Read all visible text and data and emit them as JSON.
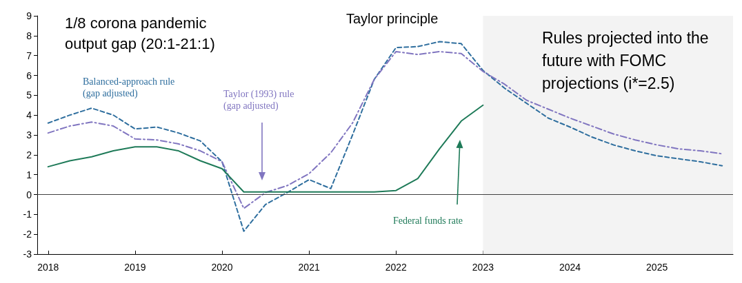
{
  "chart_data": {
    "type": "line",
    "x": [
      2018,
      2018.25,
      2018.5,
      2018.75,
      2019,
      2019.25,
      2019.5,
      2019.75,
      2020,
      2020.25,
      2020.5,
      2020.75,
      2021,
      2021.25,
      2021.5,
      2021.75,
      2022,
      2022.25,
      2022.5,
      2022.75,
      2023,
      2023.25,
      2023.5,
      2023.75,
      2024,
      2024.25,
      2024.5,
      2024.75,
      2025,
      2025.25,
      2025.5,
      2025.75
    ],
    "xlim": [
      2017.875,
      2025.875
    ],
    "xticks": [
      2018,
      2019,
      2020,
      2021,
      2022,
      2023,
      2024,
      2025
    ],
    "ylim": [
      -3,
      9
    ],
    "yticks": [
      -3,
      -2,
      -1,
      0,
      1,
      2,
      3,
      4,
      5,
      6,
      7,
      8,
      9
    ],
    "series": [
      {
        "name": "Balanced-approach rule\n(gap adjusted)",
        "color": "#2e6e9e",
        "line_style": "dashed",
        "values": [
          3.6,
          4.0,
          4.35,
          4.0,
          3.3,
          3.4,
          3.1,
          2.7,
          1.65,
          -1.85,
          -0.5,
          0.1,
          0.75,
          0.3,
          3.0,
          5.8,
          7.4,
          7.45,
          7.7,
          7.6,
          6.25,
          5.35,
          4.6,
          3.85,
          3.4,
          2.9,
          2.5,
          2.2,
          1.95,
          1.8,
          1.65,
          1.45
        ]
      },
      {
        "name": "Taylor (1993) rule\n(gap adjusted)",
        "color": "#8075c0",
        "line_style": "dashdot",
        "values": [
          3.1,
          3.45,
          3.65,
          3.45,
          2.8,
          2.75,
          2.55,
          2.2,
          1.65,
          -0.7,
          0.1,
          0.45,
          1.05,
          2.1,
          3.6,
          5.8,
          7.2,
          7.05,
          7.2,
          7.1,
          6.2,
          5.55,
          4.75,
          4.3,
          3.85,
          3.45,
          3.05,
          2.75,
          2.5,
          2.3,
          2.2,
          2.05
        ]
      },
      {
        "name": "Federal funds rate",
        "color": "#1e7a58",
        "line_style": "solid",
        "values": [
          1.4,
          1.7,
          1.9,
          2.2,
          2.4,
          2.4,
          2.2,
          1.7,
          1.3,
          0.13,
          0.13,
          0.13,
          0.13,
          0.13,
          0.13,
          0.13,
          0.2,
          0.8,
          2.3,
          3.7,
          4.5,
          null,
          null,
          null,
          null,
          null,
          null,
          null,
          null,
          null,
          null,
          null
        ]
      }
    ],
    "ref_lines": [
      {
        "axis": "y",
        "value": 0,
        "color": "#404040"
      }
    ],
    "bands": [
      {
        "axis": "x",
        "from": 2023,
        "to": 2025.875,
        "color": "#f3f3f3"
      }
    ],
    "annotations": [
      "1/8 corona pandemic\noutput gap (20:1-21:1)",
      "Taylor principle",
      "Rules projected into the\nfuture with FOMC\nprojections (i*=2.5)"
    ],
    "marker": "none",
    "grid": false,
    "legend": false
  }
}
